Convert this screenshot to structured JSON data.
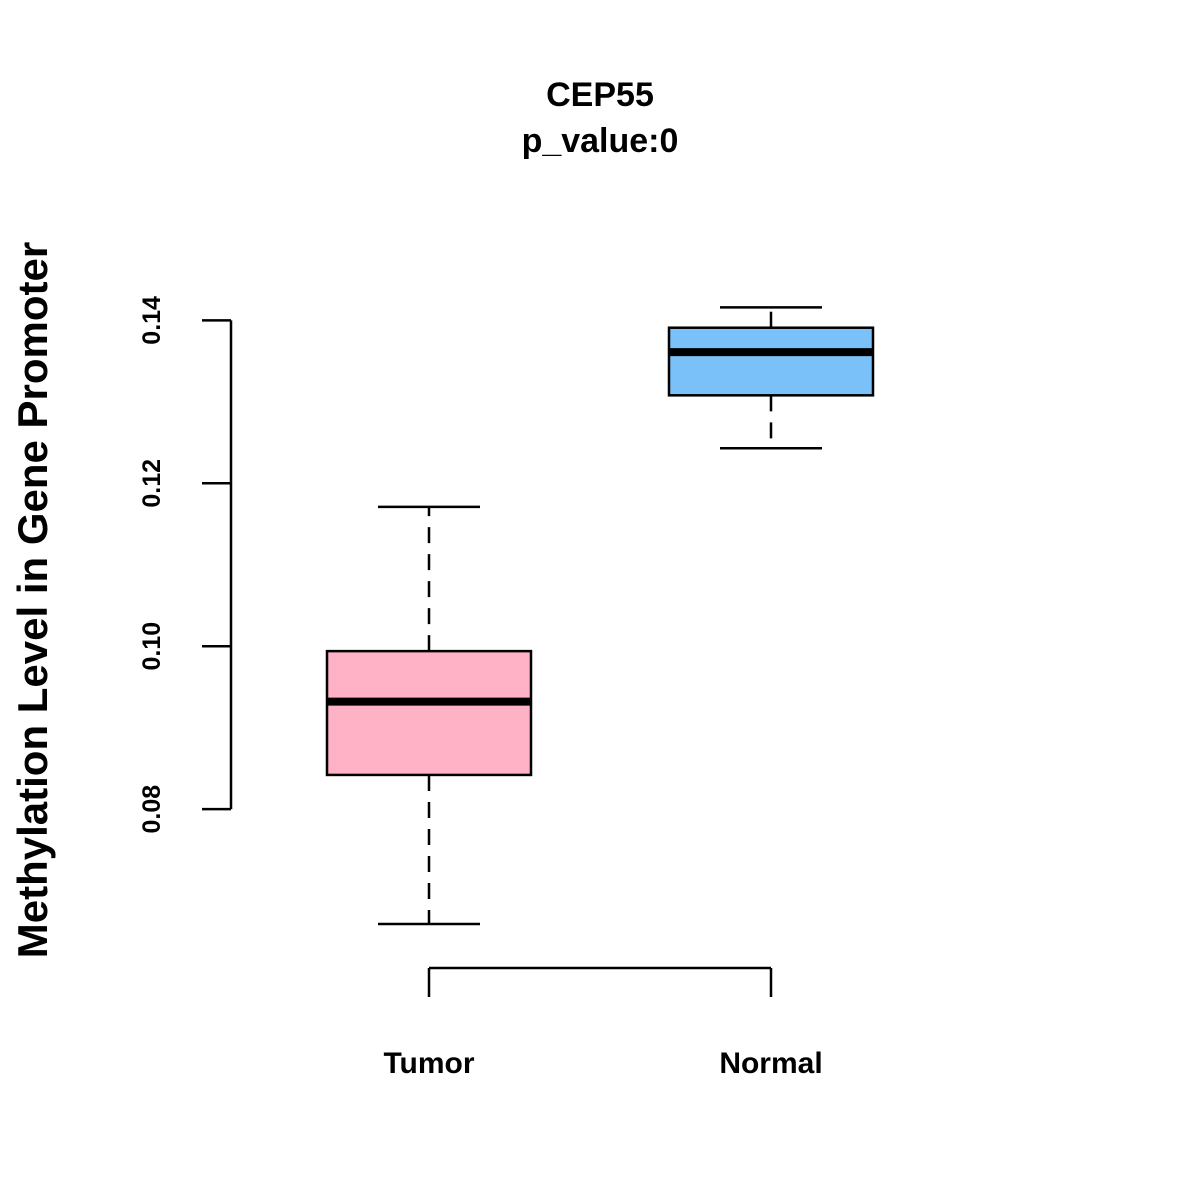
{
  "chart_data": {
    "type": "boxplot",
    "title": "CEP55",
    "subtitle": "p_value:0",
    "xlabel": "",
    "ylabel": "Methylation Level in Gene Promoter",
    "categories": [
      "Tumor",
      "Normal"
    ],
    "yticks": [
      0.08,
      0.1,
      0.12,
      0.14
    ],
    "ytick_labels": [
      "0.08",
      "0.10",
      "0.12",
      "0.14"
    ],
    "ylim": [
      0.0605,
      0.1495
    ],
    "series": [
      {
        "name": "Tumor",
        "color": "#FFB1C5",
        "whisker_low": 0.0659,
        "q1": 0.0842,
        "median": 0.0932,
        "q3": 0.0994,
        "whisker_high": 0.1171
      },
      {
        "name": "Normal",
        "color": "#79C1F8",
        "whisker_low": 0.1243,
        "q1": 0.1308,
        "median": 0.1361,
        "q3": 0.1391,
        "whisker_high": 0.1416
      }
    ],
    "grid": false,
    "legend": "none"
  }
}
